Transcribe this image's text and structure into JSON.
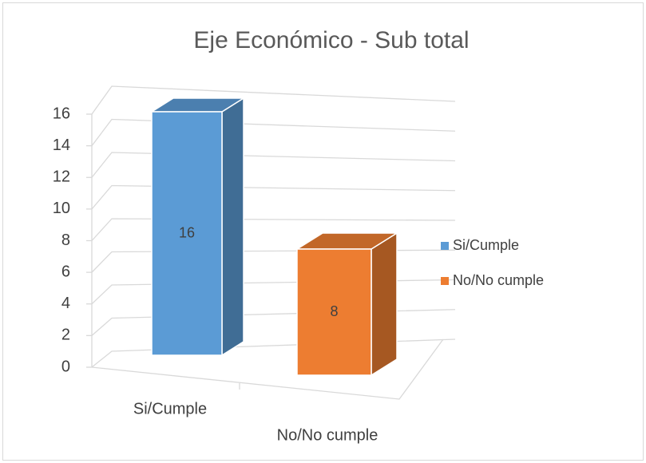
{
  "chart_data": {
    "type": "bar3d",
    "title": "Eje Económico - Sub total",
    "categories": [
      "Si/Cumple",
      "No/No cumple"
    ],
    "values": [
      16,
      8
    ],
    "colors": [
      "#5b9bd5",
      "#ed7d31"
    ],
    "ylim": [
      0,
      16
    ],
    "yticks": [
      0,
      2,
      4,
      6,
      8,
      10,
      12,
      14,
      16
    ],
    "grid": true,
    "data_labels": true,
    "legend": "right"
  }
}
